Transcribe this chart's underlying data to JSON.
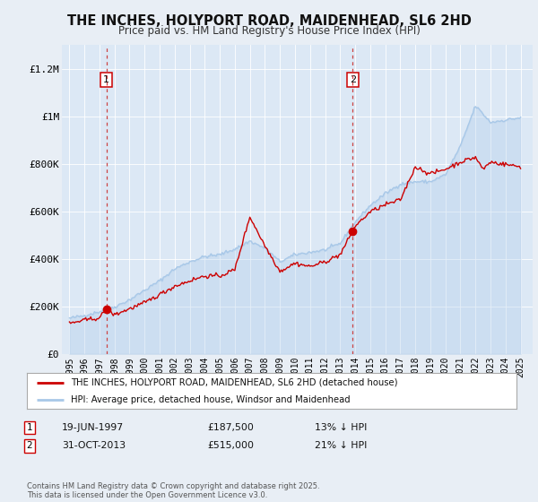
{
  "title": "THE INCHES, HOLYPORT ROAD, MAIDENHEAD, SL6 2HD",
  "subtitle": "Price paid vs. HM Land Registry's House Price Index (HPI)",
  "background_color": "#e8eef5",
  "plot_bg_color": "#dce8f5",
  "ylim": [
    0,
    1300000
  ],
  "yticks": [
    0,
    200000,
    400000,
    600000,
    800000,
    1000000,
    1200000
  ],
  "ytick_labels": [
    "£0",
    "£200K",
    "£400K",
    "£600K",
    "£800K",
    "£1M",
    "£1.2M"
  ],
  "hpi_color": "#a8c8e8",
  "price_color": "#cc0000",
  "marker1_date": 1997.47,
  "marker1_price": 187500,
  "marker1_label": "1",
  "marker1_text": "19-JUN-1997",
  "marker1_value": "£187,500",
  "marker1_note": "13% ↓ HPI",
  "marker2_date": 2013.83,
  "marker2_price": 515000,
  "marker2_label": "2",
  "marker2_text": "31-OCT-2013",
  "marker2_value": "£515,000",
  "marker2_note": "21% ↓ HPI",
  "legend_line1": "THE INCHES, HOLYPORT ROAD, MAIDENHEAD, SL6 2HD (detached house)",
  "legend_line2": "HPI: Average price, detached house, Windsor and Maidenhead",
  "footer": "Contains HM Land Registry data © Crown copyright and database right 2025.\nThis data is licensed under the Open Government Licence v3.0.",
  "xmin": 1994.5,
  "xmax": 2025.8,
  "xtick_years": [
    1995,
    1996,
    1997,
    1998,
    1999,
    2000,
    2001,
    2002,
    2003,
    2004,
    2005,
    2006,
    2007,
    2008,
    2009,
    2010,
    2011,
    2012,
    2013,
    2014,
    2015,
    2016,
    2017,
    2018,
    2019,
    2020,
    2021,
    2022,
    2023,
    2024,
    2025
  ],
  "hpi_base_points_years": [
    1995,
    1996,
    1997,
    1998,
    1999,
    2000,
    2001,
    2002,
    2003,
    2004,
    2005,
    2006,
    2007,
    2008,
    2009,
    2010,
    2011,
    2012,
    2013,
    2014,
    2015,
    2016,
    2017,
    2018,
    2019,
    2020,
    2021,
    2022,
    2023,
    2024,
    2025
  ],
  "hpi_base_points_vals": [
    150000,
    162000,
    178000,
    198000,
    228000,
    268000,
    308000,
    358000,
    388000,
    410000,
    418000,
    442000,
    475000,
    445000,
    388000,
    418000,
    428000,
    438000,
    465000,
    555000,
    625000,
    675000,
    715000,
    725000,
    725000,
    755000,
    875000,
    1045000,
    975000,
    985000,
    995000
  ],
  "price_base_points_years": [
    1995,
    1996,
    1997,
    1997.47,
    1998,
    1999,
    2000,
    2001,
    2002,
    2003,
    2004,
    2005,
    2006,
    2007,
    2008,
    2009,
    2010,
    2011,
    2012,
    2013,
    2013.83,
    2014,
    2015,
    2016,
    2017,
    2018,
    2019,
    2020,
    2021,
    2022,
    2022.5,
    2023,
    2024,
    2025
  ],
  "price_base_points_vals": [
    128000,
    142000,
    152000,
    187500,
    165000,
    190000,
    215000,
    250000,
    285000,
    308000,
    328000,
    328000,
    355000,
    578000,
    455000,
    348000,
    382000,
    368000,
    388000,
    418000,
    515000,
    538000,
    598000,
    628000,
    648000,
    788000,
    758000,
    778000,
    808000,
    828000,
    778000,
    808000,
    798000,
    788000
  ]
}
